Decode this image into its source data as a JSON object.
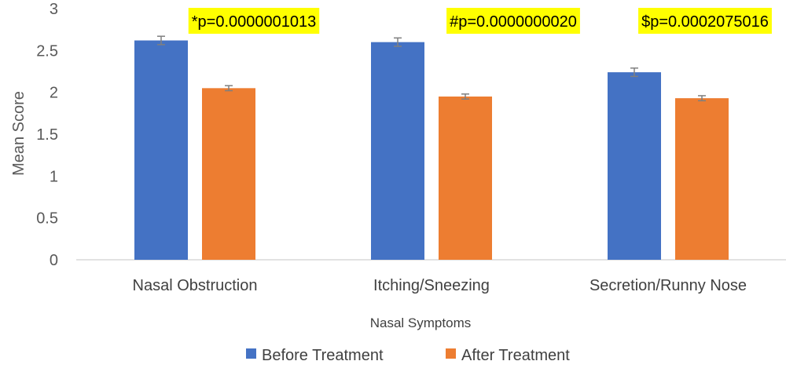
{
  "chart_data": {
    "type": "bar",
    "title": "",
    "xlabel": "Nasal Symptoms",
    "ylabel": "Mean Score",
    "ylim": [
      0,
      3
    ],
    "yticks": [
      "0",
      "0.5",
      "1",
      "1.5",
      "2",
      "2.5",
      "3"
    ],
    "ytick_values": [
      0,
      0.5,
      1,
      1.5,
      2,
      2.5,
      3
    ],
    "grid": false,
    "categories": [
      "Nasal Obstruction",
      "Itching/Sneezing",
      "Secretion/Runny Nose"
    ],
    "series": [
      {
        "name": "Before Treatment",
        "color": "#4472C4",
        "values": [
          2.62,
          2.6,
          2.24
        ],
        "errors": [
          0.05,
          0.05,
          0.05
        ]
      },
      {
        "name": "After Treatment",
        "color": "#ED7D31",
        "values": [
          2.05,
          1.95,
          1.93
        ],
        "errors": [
          0.03,
          0.03,
          0.03
        ]
      }
    ],
    "annotations": [
      "*p=0.0000001013",
      "#p=0.0000000020",
      "$p=0.0002075016"
    ],
    "annotation_color": "#FFFF00",
    "legend_position": "bottom"
  }
}
